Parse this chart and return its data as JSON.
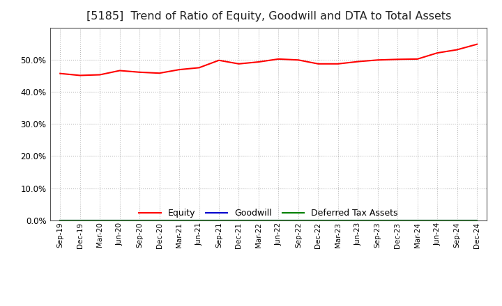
{
  "title": "[5185]  Trend of Ratio of Equity, Goodwill and DTA to Total Assets",
  "x_labels": [
    "Sep-19",
    "Dec-19",
    "Mar-20",
    "Jun-20",
    "Sep-20",
    "Dec-20",
    "Mar-21",
    "Jun-21",
    "Sep-21",
    "Dec-21",
    "Mar-22",
    "Jun-22",
    "Sep-22",
    "Dec-22",
    "Mar-23",
    "Jun-23",
    "Sep-23",
    "Dec-23",
    "Mar-24",
    "Jun-24",
    "Sep-24",
    "Dec-24"
  ],
  "equity": [
    0.457,
    0.451,
    0.453,
    0.466,
    0.461,
    0.458,
    0.469,
    0.475,
    0.498,
    0.487,
    0.493,
    0.502,
    0.499,
    0.487,
    0.487,
    0.494,
    0.499,
    0.501,
    0.502,
    0.521,
    0.531,
    0.548
  ],
  "goodwill": [
    0.0,
    0.0,
    0.0,
    0.0,
    0.0,
    0.0,
    0.0,
    0.0,
    0.0,
    0.0,
    0.0,
    0.0,
    0.0,
    0.0,
    0.0,
    0.0,
    0.0,
    0.0,
    0.0,
    0.0,
    0.0,
    0.0
  ],
  "dta": [
    0.0,
    0.0,
    0.0,
    0.0,
    0.0,
    0.0,
    0.0,
    0.0,
    0.0,
    0.0,
    0.0,
    0.0,
    0.0,
    0.0,
    0.0,
    0.0,
    0.0,
    0.0,
    0.0,
    0.0,
    0.0,
    0.0
  ],
  "equity_color": "#ff0000",
  "goodwill_color": "#0000cd",
  "dta_color": "#008000",
  "background_color": "#ffffff",
  "plot_bg_color": "#ffffff",
  "grid_color": "#bbbbbb",
  "ylim": [
    0.0,
    0.6
  ],
  "yticks": [
    0.0,
    0.1,
    0.2,
    0.3,
    0.4,
    0.5
  ],
  "title_fontsize": 11.5,
  "tick_fontsize": 8.5,
  "xtick_fontsize": 7.5,
  "legend_labels": [
    "Equity",
    "Goodwill",
    "Deferred Tax Assets"
  ],
  "line_width": 1.5
}
